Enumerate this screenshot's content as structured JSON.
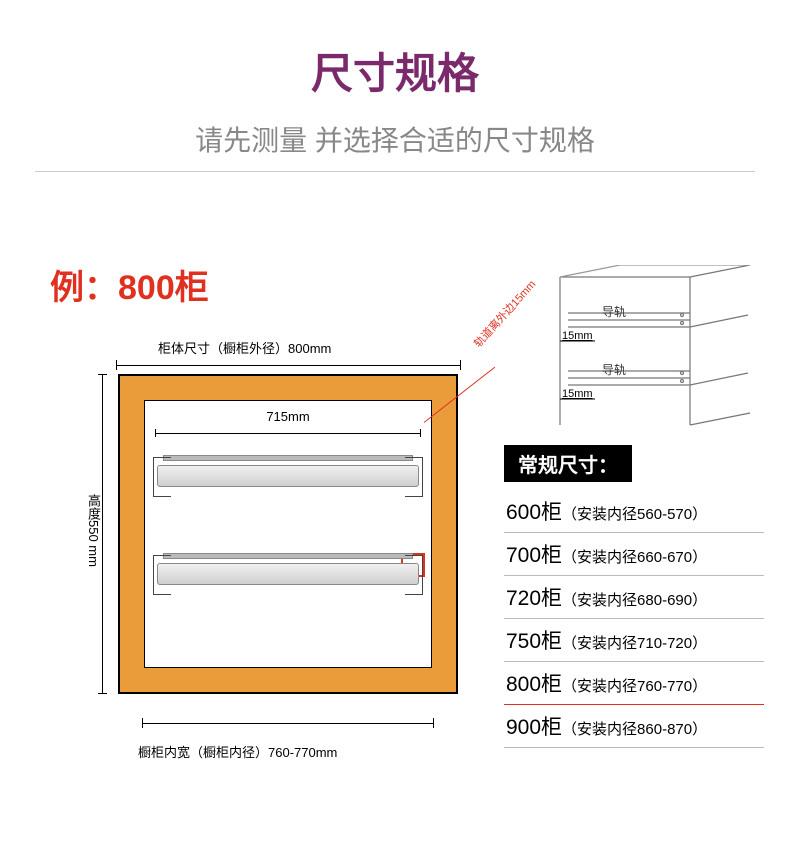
{
  "title": {
    "text": "尺寸规格",
    "color": "#7a2a6a",
    "fontsize": 42
  },
  "subtitle": {
    "text": "请先测量 并选择合适的尺寸规格",
    "color": "#888888",
    "fontsize": 28
  },
  "example_label": {
    "text": "例：800柜",
    "color": "#e03020",
    "fontsize": 34
  },
  "cabinet": {
    "frame_color": "#ea9b3a",
    "border_color": "#000000",
    "outer_width_label": "柜体尺寸（橱柜外径）800mm",
    "inner_width_label": "715mm",
    "height_label": "高度550\nmm",
    "bottom_label": "橱柜内宽（橱柜内径）760-770mm",
    "callout_label": "轨道离外边15mm",
    "callout_color": "#e03020"
  },
  "iso": {
    "rail_label": "导轨",
    "gap_label": "15mm",
    "line_color": "#888888"
  },
  "size_table": {
    "header": "常规尺寸：",
    "header_bg": "#000000",
    "header_fg": "#ffffff",
    "highlight_index": 4,
    "highlight_color": "#e03020",
    "rows": [
      {
        "cab": "600柜",
        "detail": "（安装内径560-570）"
      },
      {
        "cab": "700柜",
        "detail": "（安装内径660-670）"
      },
      {
        "cab": "720柜",
        "detail": "（安装内径680-690）"
      },
      {
        "cab": "750柜",
        "detail": "（安装内径710-720）"
      },
      {
        "cab": "800柜",
        "detail": "（安装内径760-770）"
      },
      {
        "cab": "900柜",
        "detail": "（安装内径860-870）"
      }
    ]
  }
}
